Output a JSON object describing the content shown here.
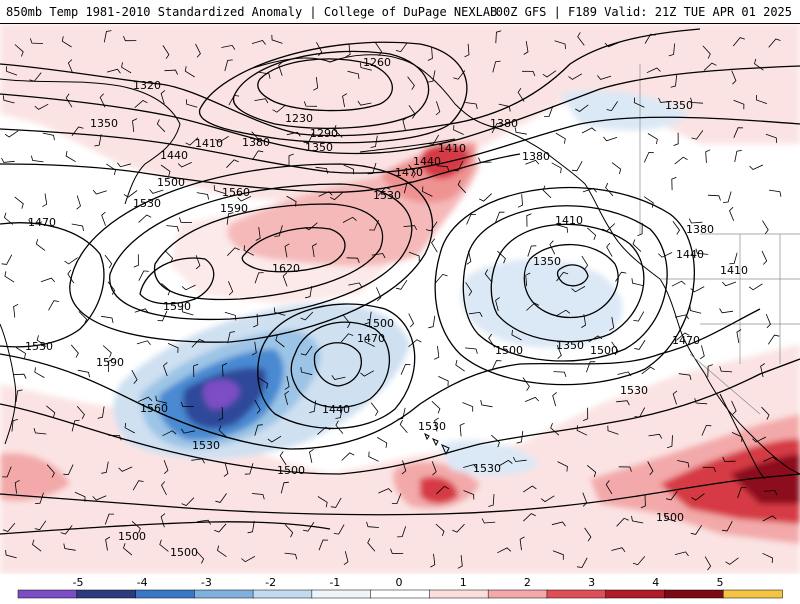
{
  "header": {
    "left_title": "850mb Temp 1981-2010 Standardized Anomaly | College of DuPage NEXLAB",
    "right_title": "00Z GFS | F189 Valid: 21Z TUE APR 01 2025"
  },
  "contours": {
    "labels": [
      "1260",
      "1320",
      "1230",
      "1290",
      "1350",
      "1350",
      "1410",
      "1380",
      "1350",
      "1440",
      "1440",
      "1410",
      "1380",
      "1470",
      "1500",
      "1530",
      "1560",
      "1530",
      "1470",
      "1590",
      "1620",
      "1590",
      "1410",
      "1350",
      "1380",
      "1380",
      "1440",
      "1410",
      "1530",
      "1500",
      "1470",
      "1590",
      "1560",
      "1440",
      "1500",
      "1500",
      "1530",
      "1530",
      "1530",
      "1530",
      "1500",
      "1500",
      "1500",
      "1470",
      "1350",
      "1500"
    ]
  },
  "colorbar": {
    "ticks": [
      "-5",
      "-4",
      "-3",
      "-2",
      "-1",
      "0",
      "1",
      "2",
      "3",
      "4",
      "5"
    ],
    "colors": [
      "#7c4ec4",
      "#2b3b7d",
      "#3978c5",
      "#7fb1df",
      "#c2dbef",
      "#eef4fa",
      "#ffffff",
      "#fbdede",
      "#f3a9a9",
      "#df4f57",
      "#b11c2a",
      "#7a0a14",
      "#f4c542"
    ]
  },
  "colors": {
    "contour": "#000000",
    "coast": "#000000",
    "state_lines": "#8c8c8c"
  }
}
